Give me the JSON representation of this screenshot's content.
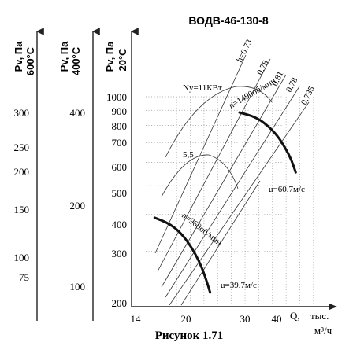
{
  "chart_data": {
    "type": "line",
    "title": "ВОДВ-46-130-8",
    "caption": "Рисунок 1.71",
    "xlabel_q": "Q,",
    "xlabel_tys": "тыс.",
    "xlabel_units": "м³/ч",
    "xticks": [
      "14",
      "20",
      "30",
      "40"
    ],
    "x_values": [
      14,
      20,
      30,
      40
    ],
    "xlim": [
      14,
      44
    ],
    "y_scale": "log",
    "ylim": [
      200,
      1100
    ],
    "axes": [
      {
        "label_top": "Pv, Па",
        "label_bottom": "600°С",
        "ticks": [
          "300",
          "250",
          "200",
          "150",
          "100",
          "75"
        ],
        "values": [
          300,
          250,
          200,
          150,
          100,
          75
        ]
      },
      {
        "label_top": "Pv, Па",
        "label_bottom": "400°С",
        "ticks": [
          "400",
          "200",
          "100"
        ],
        "values": [
          400,
          200,
          100
        ]
      },
      {
        "label_top": "Pv, Па",
        "label_bottom": "20°С",
        "ticks": [
          "1000",
          "900",
          "800",
          "700",
          "600",
          "500",
          "400",
          "300",
          "200"
        ],
        "values": [
          1000,
          900,
          800,
          700,
          600,
          500,
          400,
          300,
          200
        ]
      }
    ],
    "efficiency_labels": [
      "h=0.73",
      "0.78",
      "0.81",
      "0.78",
      "0.735"
    ],
    "series": [
      {
        "name": "n=1490об/мин",
        "x": [
          29.2,
          31.5,
          33.3,
          34.8,
          35.9,
          36.8,
          37.4
        ],
        "y": [
          885,
          855,
          800,
          735,
          670,
          610,
          555
        ]
      },
      {
        "name": "n=960об/мин",
        "x": [
          16.8,
          19.0,
          20.7,
          22.2,
          23.4,
          24.3,
          24.9
        ],
        "y": [
          390,
          372,
          345,
          310,
          275,
          242,
          218
        ]
      }
    ],
    "annotations": {
      "power": "Ny=11КВт",
      "power_2": "5,5",
      "velocity_1": "u=60.7м/с",
      "velocity_2": "u=39.7м/с"
    }
  }
}
